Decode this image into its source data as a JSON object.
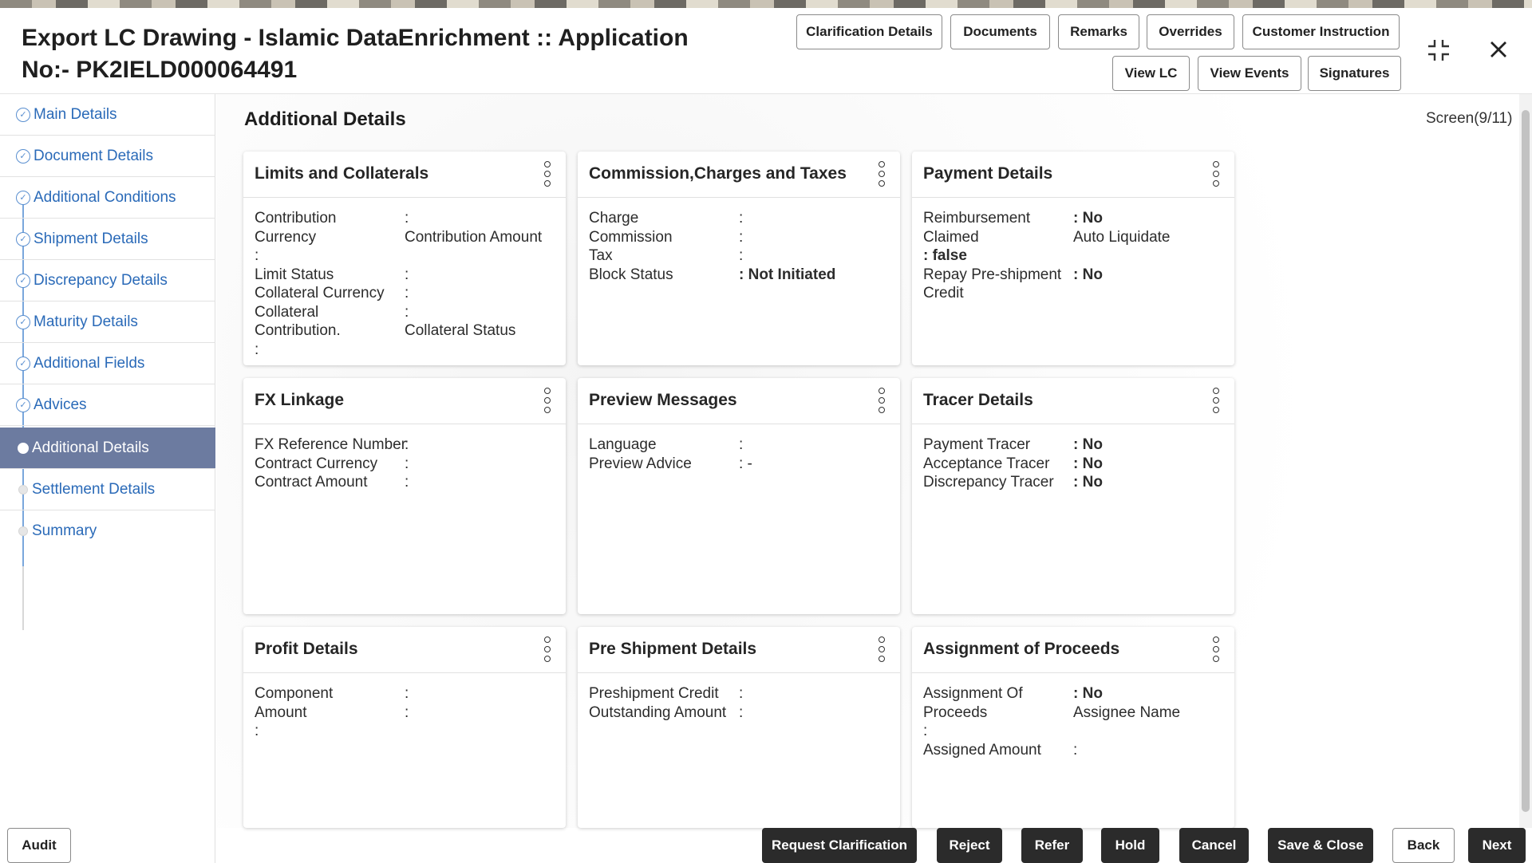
{
  "header": {
    "title": "Export LC Drawing - Islamic DataEnrichment :: Application No:- PK2IELD000064491",
    "buttons_row1": [
      "Clarification Details",
      "Documents",
      "Remarks",
      "Overrides",
      "Customer Instruction"
    ],
    "buttons_row2": [
      "View LC",
      "View Events",
      "Signatures"
    ],
    "icons": [
      "collapse-icon",
      "close-icon"
    ]
  },
  "sidebar": {
    "items": [
      {
        "label": "Main Details",
        "state": "completed"
      },
      {
        "label": "Document Details",
        "state": "completed"
      },
      {
        "label": "Additional Conditions",
        "state": "completed"
      },
      {
        "label": "Shipment Details",
        "state": "completed"
      },
      {
        "label": "Discrepancy Details",
        "state": "completed"
      },
      {
        "label": "Maturity Details",
        "state": "completed"
      },
      {
        "label": "Additional Fields",
        "state": "completed"
      },
      {
        "label": "Advices",
        "state": "completed"
      },
      {
        "label": "Additional Details",
        "state": "active"
      },
      {
        "label": "Settlement Details",
        "state": "pending"
      },
      {
        "label": "Summary",
        "state": "pending"
      }
    ]
  },
  "main": {
    "section_title": "Additional Details",
    "screen_indicator": "Screen(9/11)"
  },
  "cards": {
    "limits": {
      "title": "Limits and Collaterals",
      "r1k": "Contribution Currency",
      "r1v": ":",
      "r1b": "Contribution Amount",
      "r1c": ":",
      "r2k": "Limit Status",
      "r2v": ":",
      "r3k": "Collateral Currency",
      "r3v": ":",
      "r4k": "Collateral Contribution.",
      "r4v": ":",
      "r4b": "Collateral Status",
      "r4c": ":"
    },
    "commission": {
      "title": "Commission,Charges and Taxes",
      "r1k": "Charge",
      "r1v": ":",
      "r2k": "Commission",
      "r2v": ":",
      "r3k": "Tax",
      "r3v": ":",
      "r4k": "Block Status",
      "r4v": ": Not Initiated"
    },
    "payment": {
      "title": "Payment Details",
      "r1k": "Reimbursement Claimed",
      "r1v": ": No",
      "r1b": "Auto Liquidate",
      "r1c": ": false",
      "r2k": "Repay Pre-shipment Credit",
      "r2v": ": No"
    },
    "fx": {
      "title": "FX Linkage",
      "r1k": "FX Reference Number",
      "r1v": ":",
      "r2k": "Contract Currency",
      "r2v": ":",
      "r3k": "Contract Amount",
      "r3v": ":"
    },
    "preview": {
      "title": "Preview Messages",
      "r1k": "Language",
      "r1v": ":",
      "r2k": "Preview Advice",
      "r2v": ": -"
    },
    "tracer": {
      "title": "Tracer Details",
      "r1k": "Payment Tracer",
      "r1v": ": No",
      "r2k": "Acceptance Tracer",
      "r2v": ": No",
      "r3k": "Discrepancy Tracer",
      "r3v": ": No"
    },
    "profit": {
      "title": "Profit Details",
      "r1k": "Component",
      "r1v": ":",
      "r2k": "Amount",
      "r2v": ":",
      "r2c": ":"
    },
    "preship": {
      "title": "Pre Shipment Details",
      "r1k": "Preshipment Credit",
      "r1v": ":",
      "r2k": "Outstanding Amount",
      "r2v": ":"
    },
    "assign": {
      "title": "Assignment of Proceeds",
      "r1k": "Assignment Of Proceeds",
      "r1v": ": No",
      "r1b": "Assignee Name",
      "r1c": ":",
      "r2k": "Assigned Amount",
      "r2v": ":"
    }
  },
  "footer": {
    "audit": "Audit",
    "request_clarification": "Request Clarification",
    "reject": "Reject",
    "refer": "Refer",
    "hold": "Hold",
    "cancel": "Cancel",
    "save_close": "Save & Close",
    "back": "Back",
    "next": "Next"
  }
}
